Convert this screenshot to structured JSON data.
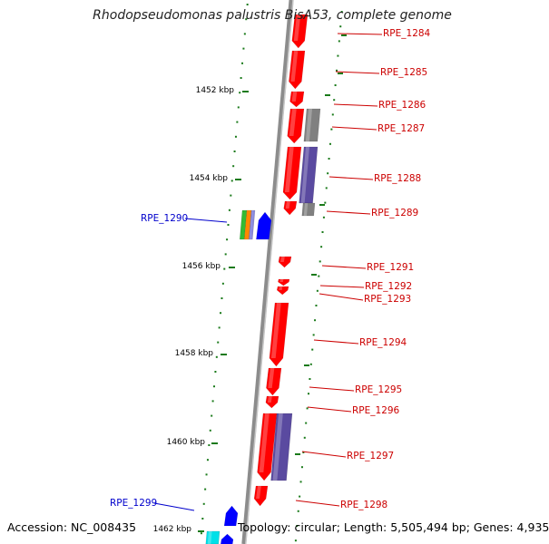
{
  "title": "Rhodopseudomonas palustris BisA53, complete genome",
  "footer": {
    "accession": "Accession: NC_008435",
    "summary": "Topology: circular; Length: 5,505,494 bp; Genes: 4,935"
  },
  "colors": {
    "backbone": "#8c8c8c",
    "forward_strand_genes": "#ff0000",
    "reverse_strand_genes": "#0000ff",
    "homolog_gray": "#808080",
    "homolog_purple": "#5a4aa0",
    "ticks": "#1a7a1a",
    "label_red": "#cc0000",
    "label_blue": "#0000cc"
  },
  "kbp_labels": [
    "1452 kbp",
    "1454 kbp",
    "1456 kbp",
    "1458 kbp",
    "1460 kbp",
    "1462 kbp"
  ],
  "gene_labels": {
    "right": [
      "RPE_1284",
      "RPE_1285",
      "RPE_1286",
      "RPE_1287",
      "RPE_1288",
      "RPE_1289",
      "RPE_1291",
      "RPE_1292",
      "RPE_1293",
      "RPE_1294",
      "RPE_1295",
      "RPE_1296",
      "RPE_1297",
      "RPE_1298"
    ],
    "left": [
      "RPE_1290",
      "RPE_1299"
    ]
  }
}
